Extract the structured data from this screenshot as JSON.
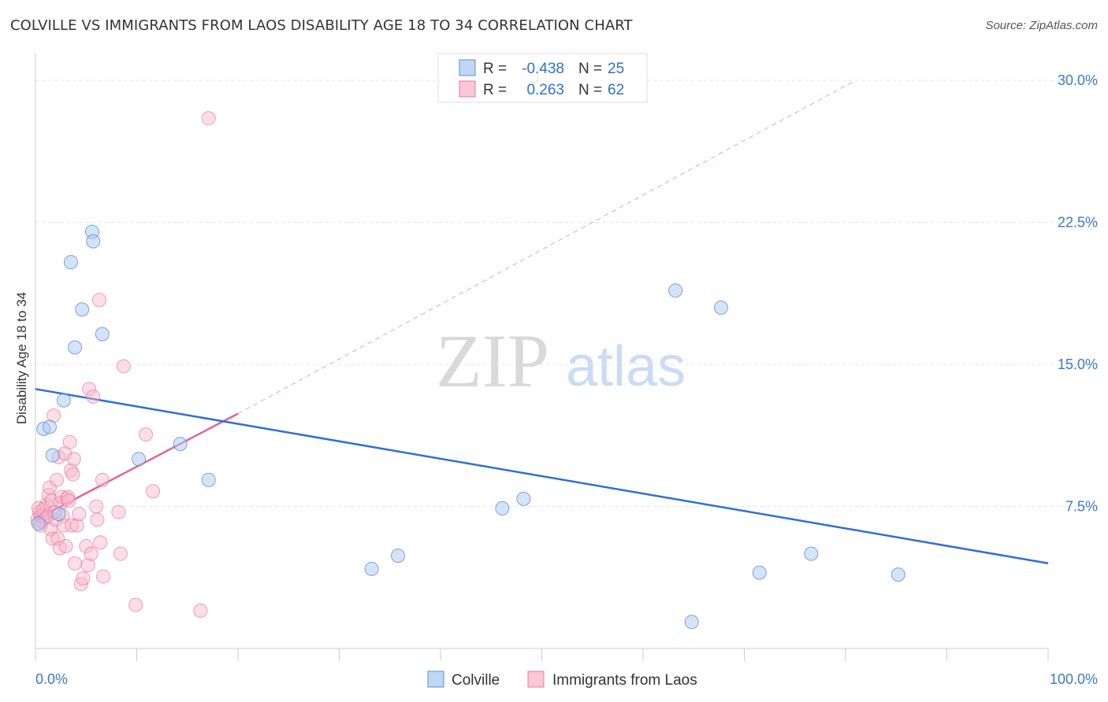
{
  "title": "COLVILLE VS IMMIGRANTS FROM LAOS DISABILITY AGE 18 TO 34 CORRELATION CHART",
  "source": "Source: ZipAtlas.com",
  "watermark": {
    "zip": "ZIP",
    "atlas": "atlas"
  },
  "legend": {
    "rows": [
      {
        "r_label": "R =",
        "r_value": "-0.438",
        "n_label": "N =",
        "n_value": "25"
      },
      {
        "r_label": "R =",
        "r_value": "0.263",
        "n_label": "N =",
        "n_value": "62"
      }
    ]
  },
  "colors": {
    "colville_fill": "#a9c9f0",
    "colville_stroke": "#5b8fd6",
    "colville_line": "#2f6fd0",
    "laos_fill": "#f7b6c9",
    "laos_stroke": "#e8799c",
    "laos_line": "#e2638f",
    "grid": "#e4e4e4",
    "tick_text": "#3a78c9"
  },
  "chart_data": {
    "type": "scatter",
    "title": "COLVILLE VS IMMIGRANTS FROM LAOS DISABILITY AGE 18 TO 34 CORRELATION CHART",
    "xlabel": "",
    "ylabel": "Disability Age 18 to 34",
    "xlim": [
      0,
      100
    ],
    "ylim": [
      0,
      31
    ],
    "x_tick_labels": [
      "0.0%",
      "100.0%"
    ],
    "y_ticks": [
      7.5,
      15.0,
      22.5,
      30.0
    ],
    "y_tick_labels": [
      "7.5%",
      "15.0%",
      "22.5%",
      "30.0%"
    ],
    "series": [
      {
        "name": "Colville",
        "points": [
          [
            0.3,
            6.6
          ],
          [
            0.8,
            11.6
          ],
          [
            1.4,
            11.7
          ],
          [
            1.7,
            10.2
          ],
          [
            2.3,
            7.1
          ],
          [
            2.8,
            13.1
          ],
          [
            3.5,
            20.4
          ],
          [
            3.9,
            15.9
          ],
          [
            4.6,
            17.9
          ],
          [
            5.6,
            22.0
          ],
          [
            5.7,
            21.5
          ],
          [
            6.6,
            16.6
          ],
          [
            10.2,
            10.0
          ],
          [
            14.3,
            10.8
          ],
          [
            17.1,
            8.9
          ],
          [
            33.2,
            4.2
          ],
          [
            35.8,
            4.9
          ],
          [
            46.1,
            7.4
          ],
          [
            48.2,
            7.9
          ],
          [
            63.2,
            18.9
          ],
          [
            64.8,
            1.4
          ],
          [
            67.7,
            18.0
          ],
          [
            71.5,
            4.0
          ],
          [
            76.6,
            5.0
          ],
          [
            85.2,
            3.9
          ]
        ],
        "trend": {
          "x": [
            0,
            100
          ],
          "y": [
            13.7,
            4.5
          ],
          "style": "solid"
        }
      },
      {
        "name": "Immigrants from Laos",
        "points": [
          [
            0.2,
            6.8
          ],
          [
            0.4,
            7.2
          ],
          [
            0.5,
            7.0
          ],
          [
            0.6,
            6.7
          ],
          [
            0.7,
            7.3
          ],
          [
            0.8,
            7.1
          ],
          [
            0.9,
            7.4
          ],
          [
            1.0,
            6.9
          ],
          [
            1.1,
            7.6
          ],
          [
            1.2,
            7.0
          ],
          [
            1.3,
            8.1
          ],
          [
            1.4,
            8.5
          ],
          [
            1.5,
            6.3
          ],
          [
            1.6,
            7.8
          ],
          [
            1.7,
            5.8
          ],
          [
            1.8,
            12.3
          ],
          [
            2.0,
            6.8
          ],
          [
            2.1,
            8.9
          ],
          [
            2.2,
            5.8
          ],
          [
            2.3,
            10.1
          ],
          [
            2.4,
            5.3
          ],
          [
            2.5,
            7.7
          ],
          [
            2.6,
            8.0
          ],
          [
            2.7,
            7.0
          ],
          [
            2.8,
            6.5
          ],
          [
            2.9,
            10.3
          ],
          [
            3.0,
            5.4
          ],
          [
            3.1,
            7.9
          ],
          [
            3.2,
            8.0
          ],
          [
            3.3,
            7.8
          ],
          [
            3.4,
            10.9
          ],
          [
            3.5,
            9.4
          ],
          [
            3.6,
            6.5
          ],
          [
            3.7,
            9.2
          ],
          [
            3.8,
            10.0
          ],
          [
            3.9,
            4.5
          ],
          [
            4.1,
            6.5
          ],
          [
            4.3,
            7.1
          ],
          [
            4.5,
            3.4
          ],
          [
            4.7,
            3.7
          ],
          [
            5.0,
            5.4
          ],
          [
            5.2,
            4.4
          ],
          [
            5.3,
            13.7
          ],
          [
            5.5,
            5.0
          ],
          [
            5.7,
            13.3
          ],
          [
            6.0,
            7.5
          ],
          [
            6.1,
            6.8
          ],
          [
            6.3,
            18.4
          ],
          [
            6.4,
            5.6
          ],
          [
            6.6,
            8.9
          ],
          [
            6.7,
            3.8
          ],
          [
            8.2,
            7.2
          ],
          [
            8.4,
            5.0
          ],
          [
            8.7,
            14.9
          ],
          [
            9.9,
            2.3
          ],
          [
            10.9,
            11.3
          ],
          [
            11.6,
            8.3
          ],
          [
            16.3,
            2.0
          ],
          [
            17.1,
            28.0
          ],
          [
            0.3,
            7.4
          ],
          [
            0.5,
            6.5
          ],
          [
            1.9,
            7.2
          ]
        ],
        "trend": {
          "x": [
            0,
            20
          ],
          "y": [
            6.8,
            12.4
          ],
          "style": "solid"
        },
        "trend_extension": {
          "x": [
            20,
            81
          ],
          "y": [
            12.4,
            30.0
          ],
          "style": "dashed"
        }
      }
    ],
    "legend": [
      "Colville",
      "Immigrants from Laos"
    ]
  }
}
